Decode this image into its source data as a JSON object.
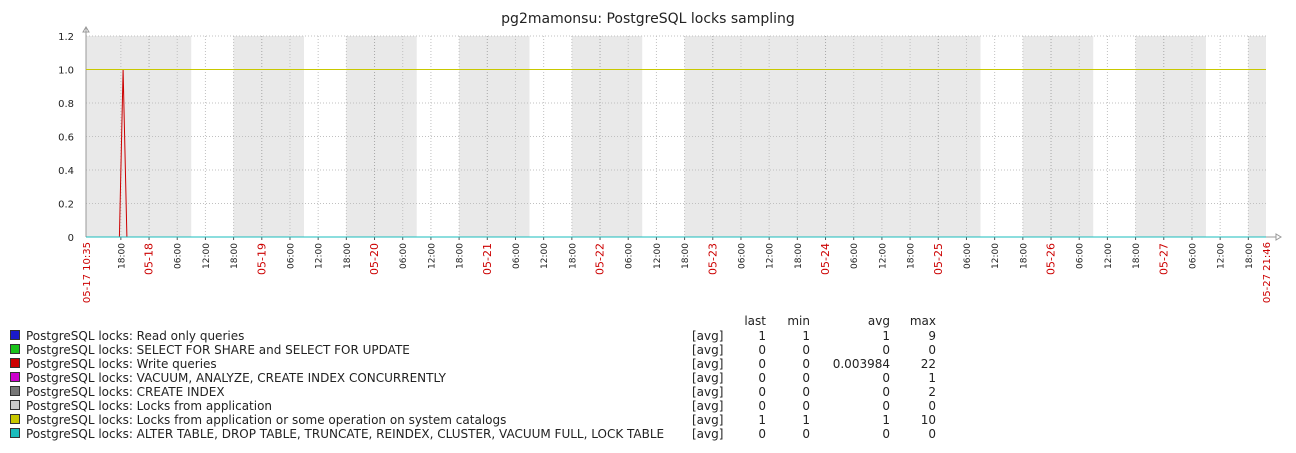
{
  "chart_data": {
    "type": "line",
    "title": "pg2mamonsu: PostgreSQL locks sampling",
    "xlabel": "",
    "ylabel": "",
    "ylim": [
      0,
      1.2
    ],
    "yticks": [
      "0",
      "0.2",
      "0.4",
      "0.6",
      "0.8",
      "1.0",
      "1.2"
    ],
    "x_start_label": "05-17 10:35",
    "x_end_label": "05-27 21:46",
    "x_range_hours": [
      0,
      251.18
    ],
    "x_ticks": [
      {
        "label": "18:00",
        "h": 7.42,
        "major": false
      },
      {
        "label": "05-18",
        "h": 13.42,
        "major": true
      },
      {
        "label": "06:00",
        "h": 19.42,
        "major": false
      },
      {
        "label": "12:00",
        "h": 25.42,
        "major": false
      },
      {
        "label": "18:00",
        "h": 31.42,
        "major": false
      },
      {
        "label": "05-19",
        "h": 37.42,
        "major": true
      },
      {
        "label": "06:00",
        "h": 43.42,
        "major": false
      },
      {
        "label": "12:00",
        "h": 49.42,
        "major": false
      },
      {
        "label": "18:00",
        "h": 55.42,
        "major": false
      },
      {
        "label": "05-20",
        "h": 61.42,
        "major": true
      },
      {
        "label": "06:00",
        "h": 67.42,
        "major": false
      },
      {
        "label": "12:00",
        "h": 73.42,
        "major": false
      },
      {
        "label": "18:00",
        "h": 79.42,
        "major": false
      },
      {
        "label": "05-21",
        "h": 85.42,
        "major": true
      },
      {
        "label": "06:00",
        "h": 91.42,
        "major": false
      },
      {
        "label": "12:00",
        "h": 97.42,
        "major": false
      },
      {
        "label": "18:00",
        "h": 103.42,
        "major": false
      },
      {
        "label": "05-22",
        "h": 109.42,
        "major": true
      },
      {
        "label": "06:00",
        "h": 115.42,
        "major": false
      },
      {
        "label": "12:00",
        "h": 121.42,
        "major": false
      },
      {
        "label": "18:00",
        "h": 127.42,
        "major": false
      },
      {
        "label": "05-23",
        "h": 133.42,
        "major": true
      },
      {
        "label": "06:00",
        "h": 139.42,
        "major": false
      },
      {
        "label": "12:00",
        "h": 145.42,
        "major": false
      },
      {
        "label": "18:00",
        "h": 151.42,
        "major": false
      },
      {
        "label": "05-24",
        "h": 157.42,
        "major": true
      },
      {
        "label": "06:00",
        "h": 163.42,
        "major": false
      },
      {
        "label": "12:00",
        "h": 169.42,
        "major": false
      },
      {
        "label": "18:00",
        "h": 175.42,
        "major": false
      },
      {
        "label": "05-25",
        "h": 181.42,
        "major": true
      },
      {
        "label": "06:00",
        "h": 187.42,
        "major": false
      },
      {
        "label": "12:00",
        "h": 193.42,
        "major": false
      },
      {
        "label": "18:00",
        "h": 199.42,
        "major": false
      },
      {
        "label": "05-26",
        "h": 205.42,
        "major": true
      },
      {
        "label": "06:00",
        "h": 211.42,
        "major": false
      },
      {
        "label": "12:00",
        "h": 217.42,
        "major": false
      },
      {
        "label": "18:00",
        "h": 223.42,
        "major": false
      },
      {
        "label": "05-27",
        "h": 229.42,
        "major": true
      },
      {
        "label": "06:00",
        "h": 235.42,
        "major": false
      },
      {
        "label": "12:00",
        "h": 241.42,
        "major": false
      },
      {
        "label": "18:00",
        "h": 247.42,
        "major": false
      }
    ],
    "shaded_hour_ranges": [
      [
        0,
        22.4
      ],
      [
        31.4,
        46.4
      ],
      [
        55.4,
        70.4
      ],
      [
        79.4,
        94.4
      ],
      [
        103.4,
        118.4
      ],
      [
        127.4,
        190.4
      ],
      [
        199.4,
        214.4
      ],
      [
        223.4,
        238.4
      ],
      [
        247.4,
        251.18
      ]
    ],
    "series": [
      {
        "name": "PostgreSQL locks: Read only queries",
        "color": "#1a1acc",
        "points": [
          [
            0,
            1
          ],
          [
            251.18,
            1
          ]
        ]
      },
      {
        "name": "PostgreSQL locks: SELECT FOR SHARE and SELECT FOR UPDATE",
        "color": "#1ac21a",
        "points": [
          [
            0,
            0
          ],
          [
            251.18,
            0
          ]
        ]
      },
      {
        "name": "PostgreSQL locks: Write queries",
        "color": "#cc0000",
        "points": [
          [
            0,
            0
          ],
          [
            7.1,
            0
          ],
          [
            7.9,
            1
          ],
          [
            8.7,
            0
          ],
          [
            251.18,
            0
          ]
        ]
      },
      {
        "name": "PostgreSQL locks: VACUUM, ANALYZE, CREATE INDEX CONCURRENTLY",
        "color": "#cc00cc",
        "points": [
          [
            0,
            0
          ],
          [
            251.18,
            0
          ]
        ]
      },
      {
        "name": "PostgreSQL locks: CREATE INDEX",
        "color": "#777777",
        "points": [
          [
            0,
            0
          ],
          [
            251.18,
            0
          ]
        ]
      },
      {
        "name": "PostgreSQL locks: Locks from application",
        "color": "#cccccc",
        "points": [
          [
            0,
            0
          ],
          [
            251.18,
            0
          ]
        ]
      },
      {
        "name": "PostgreSQL locks: Locks from application or some operation on system catalogs",
        "color": "#c8c800",
        "points": [
          [
            0,
            1
          ],
          [
            251.18,
            1
          ]
        ]
      },
      {
        "name": "PostgreSQL locks: ALTER TABLE, DROP TABLE, TRUNCATE, REINDEX, CLUSTER, VACUUM FULL, LOCK TABLE",
        "color": "#1abcbc",
        "points": [
          [
            0,
            0
          ],
          [
            251.18,
            0
          ]
        ]
      }
    ]
  },
  "legend": {
    "headers": {
      "last": "last",
      "min": "min",
      "avg": "avg",
      "max": "max"
    },
    "rows": [
      {
        "name": "PostgreSQL locks: Read only queries",
        "color": "#1a1acc",
        "func": "[avg]",
        "last": "1",
        "min": "1",
        "avg": "1",
        "max": "9"
      },
      {
        "name": "PostgreSQL locks: SELECT FOR SHARE and SELECT FOR UPDATE",
        "color": "#1ac21a",
        "func": "[avg]",
        "last": "0",
        "min": "0",
        "avg": "0",
        "max": "0"
      },
      {
        "name": "PostgreSQL locks: Write queries",
        "color": "#cc0000",
        "func": "[avg]",
        "last": "0",
        "min": "0",
        "avg": "0.003984",
        "max": "22"
      },
      {
        "name": "PostgreSQL locks: VACUUM, ANALYZE, CREATE INDEX CONCURRENTLY",
        "color": "#cc00cc",
        "func": "[avg]",
        "last": "0",
        "min": "0",
        "avg": "0",
        "max": "1"
      },
      {
        "name": "PostgreSQL locks: CREATE INDEX",
        "color": "#777777",
        "func": "[avg]",
        "last": "0",
        "min": "0",
        "avg": "0",
        "max": "2"
      },
      {
        "name": "PostgreSQL locks: Locks from application",
        "color": "#cccccc",
        "func": "[avg]",
        "last": "0",
        "min": "0",
        "avg": "0",
        "max": "0"
      },
      {
        "name": "PostgreSQL locks: Locks from application or some operation on system catalogs",
        "color": "#c8c800",
        "func": "[avg]",
        "last": "1",
        "min": "1",
        "avg": "1",
        "max": "10"
      },
      {
        "name": "PostgreSQL locks: ALTER TABLE, DROP TABLE, TRUNCATE, REINDEX, CLUSTER, VACUUM FULL, LOCK TABLE",
        "color": "#1abcbc",
        "func": "[avg]",
        "last": "0",
        "min": "0",
        "avg": "0",
        "max": "0"
      }
    ]
  }
}
